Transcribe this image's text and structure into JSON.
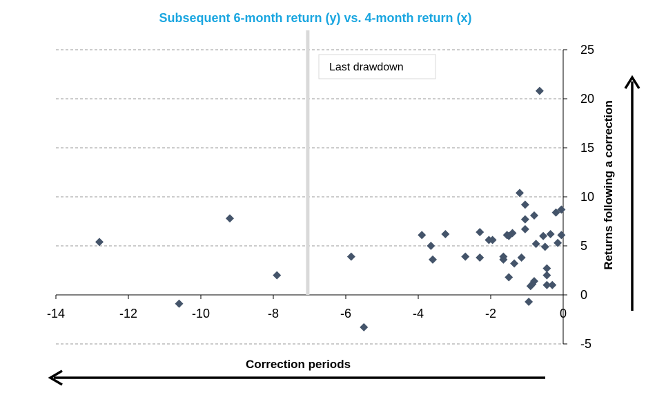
{
  "chart_data": {
    "type": "scatter",
    "title": "Subsequent 6-month return (y) vs. 4-month return (x)",
    "xlabel": "Correction periods",
    "ylabel": "Returns following a correction",
    "xlim": [
      -14,
      0
    ],
    "ylim": [
      -5,
      25
    ],
    "xticks": [
      -14,
      -12,
      -10,
      -8,
      -6,
      -4,
      -2,
      0
    ],
    "yticks": [
      -5,
      0,
      5,
      10,
      15,
      20,
      25
    ],
    "grid": "horizontal dashed",
    "annotation": "Last drawdown",
    "annotation_x": -7.05,
    "colors": {
      "title": "#1aa6e0",
      "marker": "#44546a",
      "grid": "#9a9a9a",
      "divider": "#d9d9d9"
    },
    "series": [
      {
        "points": [
          [
            -12.8,
            5.4
          ],
          [
            -10.6,
            -0.9
          ],
          [
            -9.2,
            7.8
          ],
          [
            -7.9,
            2.0
          ],
          [
            -5.85,
            3.9
          ],
          [
            -5.5,
            -3.3
          ],
          [
            -3.9,
            6.1
          ],
          [
            -3.65,
            5.0
          ],
          [
            -3.6,
            3.6
          ],
          [
            -3.25,
            6.2
          ],
          [
            -2.7,
            3.9
          ],
          [
            -2.3,
            6.4
          ],
          [
            -2.3,
            3.8
          ],
          [
            -2.05,
            5.6
          ],
          [
            -1.95,
            5.6
          ],
          [
            -1.65,
            3.9
          ],
          [
            -1.65,
            3.6
          ],
          [
            -1.55,
            6.1
          ],
          [
            -1.5,
            6.0
          ],
          [
            -1.5,
            1.8
          ],
          [
            -1.4,
            6.3
          ],
          [
            -1.35,
            3.2
          ],
          [
            -1.2,
            10.4
          ],
          [
            -1.15,
            3.8
          ],
          [
            -1.05,
            9.2
          ],
          [
            -1.05,
            7.7
          ],
          [
            -1.05,
            6.7
          ],
          [
            -0.95,
            -0.7
          ],
          [
            -0.9,
            0.9
          ],
          [
            -0.85,
            1.1
          ],
          [
            -0.8,
            1.4
          ],
          [
            -0.8,
            8.1
          ],
          [
            -0.75,
            5.2
          ],
          [
            -0.65,
            20.8
          ],
          [
            -0.55,
            6.0
          ],
          [
            -0.5,
            4.9
          ],
          [
            -0.45,
            2.7
          ],
          [
            -0.45,
            2.0
          ],
          [
            -0.45,
            1.0
          ],
          [
            -0.35,
            6.2
          ],
          [
            -0.3,
            1.0
          ],
          [
            -0.2,
            8.4
          ],
          [
            -0.15,
            5.3
          ],
          [
            -0.05,
            8.7
          ],
          [
            -0.05,
            6.1
          ]
        ]
      }
    ]
  }
}
